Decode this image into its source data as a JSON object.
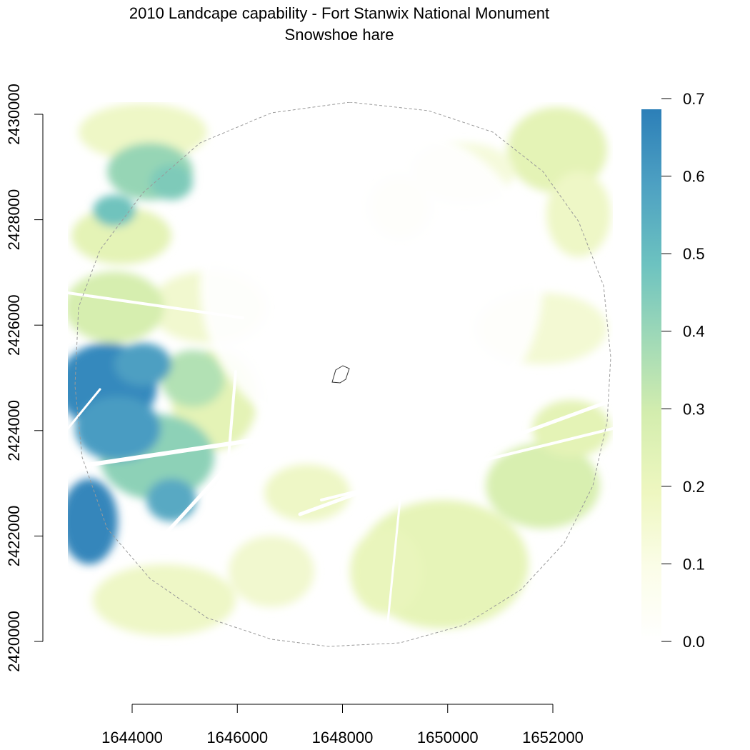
{
  "title": "2010 Landcape capability - Fort Stanwix National Monument",
  "subtitle": "Snowshoe hare",
  "map": {
    "x_ticks": [
      "1644000",
      "1646000",
      "1648000",
      "1650000",
      "1652000"
    ],
    "y_ticks": [
      "2420000",
      "2422000",
      "2424000",
      "2426000",
      "2428000",
      "2430000"
    ],
    "legend_ticks": [
      "0.0",
      "0.1",
      "0.2",
      "0.3",
      "0.4",
      "0.5",
      "0.6",
      "0.7"
    ],
    "value_range": [
      0.0,
      0.7
    ],
    "colors": {
      "low": "#ffffff",
      "mid_low": "#f1f8c8",
      "mid": "#d7efaf",
      "mid_high": "#7fcdbb",
      "high": "#2c7fb8"
    }
  }
}
